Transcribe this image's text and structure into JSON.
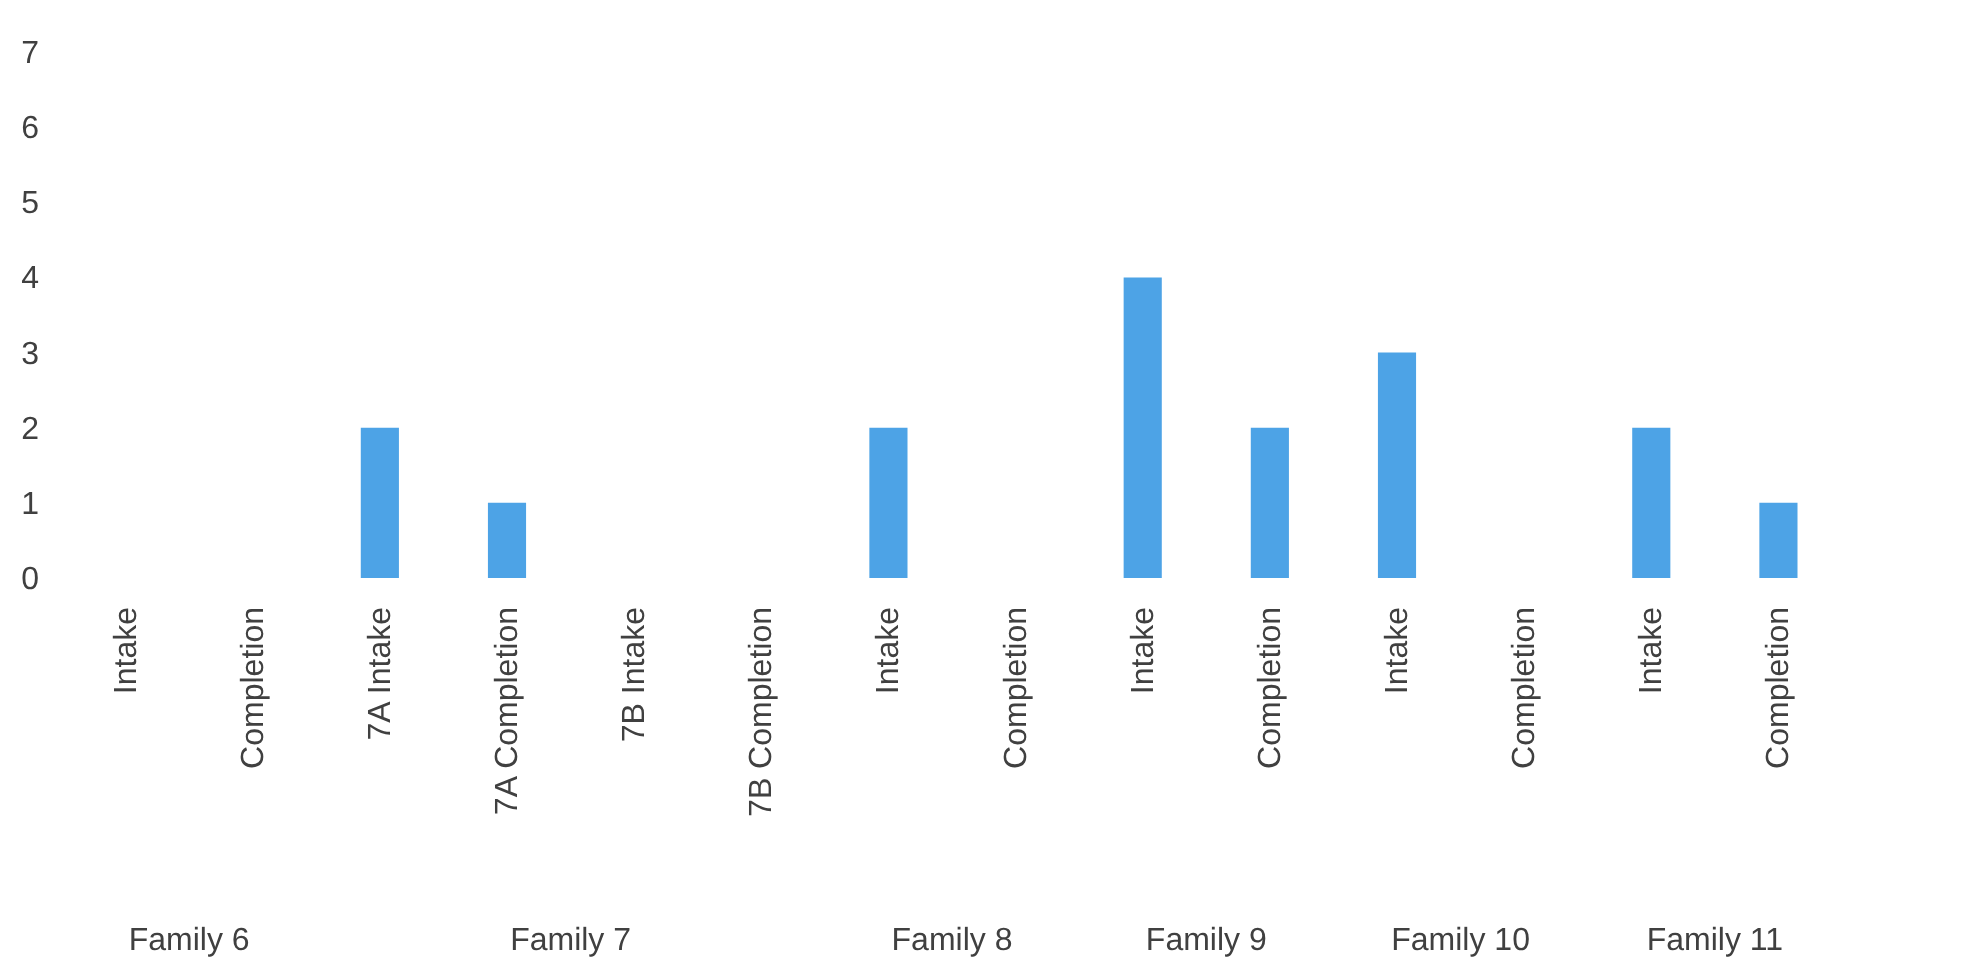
{
  "chart_data": {
    "type": "bar",
    "categories": [
      "Intake",
      "Completion",
      "7A Intake",
      "7A Completion",
      "7B Intake",
      "7B Completion",
      "Intake",
      "Completion",
      "Intake",
      "Completion",
      "Intake",
      "Completion",
      "Intake",
      "Completion"
    ],
    "values": [
      0,
      0,
      2,
      1,
      0,
      0,
      2,
      0,
      4,
      2,
      3,
      0,
      2,
      1
    ],
    "color": "#4da3e6",
    "ylim": [
      0,
      7
    ],
    "yticks": [
      0,
      1,
      2,
      3,
      4,
      5,
      6,
      7
    ],
    "annotations": [
      "Family 6",
      "Family 7",
      "Family 8",
      "Family 9",
      "Family 10",
      "Family 11"
    ],
    "grid": false
  }
}
